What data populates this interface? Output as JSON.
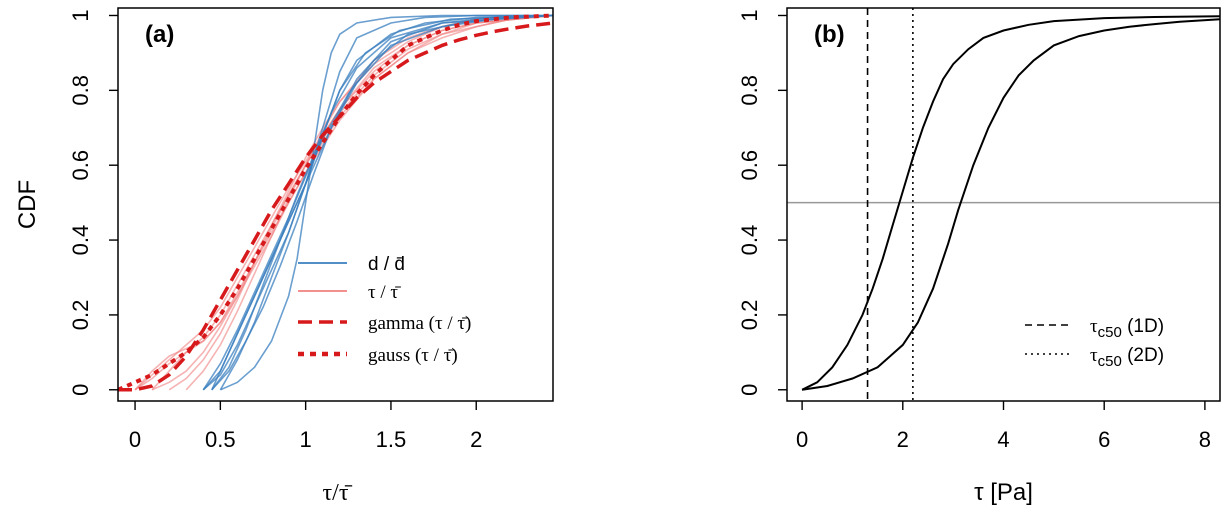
{
  "chart_data": [
    {
      "panel": "a",
      "type": "line",
      "panel_label": "(a)",
      "xlabel": "τ/τ̄",
      "ylabel": "CDF",
      "xlim": [
        -0.1,
        2.45
      ],
      "ylim": [
        -0.03,
        1.02
      ],
      "xticks": [
        0,
        0.5,
        1,
        1.5,
        2
      ],
      "xtick_labels": [
        "0",
        "0.5",
        "1",
        "1.5",
        "2"
      ],
      "yticks": [
        0,
        0.2,
        0.4,
        0.6,
        0.8,
        1
      ],
      "ytick_labels": [
        "0",
        "0.2",
        "0.4",
        "0.6",
        "0.8",
        "1"
      ],
      "grid": false,
      "legend_position": "center-right",
      "legend": [
        {
          "label": "d / d̄",
          "color": "#3a7fbf",
          "style": "solid-thin"
        },
        {
          "label": "τ / τ̄",
          "color": "#f08080",
          "style": "solid-thin"
        },
        {
          "label": "gamma (τ / τ̄)",
          "color": "#d7191c",
          "style": "dashed-thick"
        },
        {
          "label": "gauss (τ / τ̄)",
          "color": "#d7191c",
          "style": "dotted-thick"
        }
      ],
      "series_groups": [
        {
          "label": "d / d̄",
          "color": "#3a7fbf",
          "curves": [
            {
              "x": [
                0.4,
                0.5,
                0.6,
                0.7,
                0.8,
                0.9,
                1.0,
                1.1,
                1.2,
                1.3,
                1.5,
                1.7,
                2.0,
                2.45
              ],
              "y": [
                0.0,
                0.05,
                0.15,
                0.25,
                0.35,
                0.45,
                0.55,
                0.7,
                0.85,
                0.94,
                0.98,
                0.995,
                1.0,
                1.0
              ]
            },
            {
              "x": [
                0.4,
                0.5,
                0.6,
                0.7,
                0.8,
                0.9,
                1.0,
                1.1,
                1.2,
                1.3,
                1.5,
                1.7,
                2.0,
                2.45
              ],
              "y": [
                0.0,
                0.04,
                0.12,
                0.22,
                0.32,
                0.42,
                0.55,
                0.68,
                0.8,
                0.88,
                0.95,
                0.98,
                0.995,
                1.0
              ]
            },
            {
              "x": [
                0.45,
                0.55,
                0.65,
                0.75,
                0.85,
                0.95,
                1.05,
                1.15,
                1.3,
                1.5,
                1.8,
                2.1,
                2.45
              ],
              "y": [
                0.0,
                0.1,
                0.2,
                0.3,
                0.4,
                0.5,
                0.6,
                0.7,
                0.82,
                0.92,
                0.97,
                0.99,
                1.0
              ]
            },
            {
              "x": [
                0.45,
                0.55,
                0.65,
                0.75,
                0.85,
                0.95,
                1.05,
                1.15,
                1.3,
                1.5,
                1.8,
                2.1,
                2.45
              ],
              "y": [
                0.0,
                0.05,
                0.13,
                0.22,
                0.33,
                0.45,
                0.58,
                0.7,
                0.83,
                0.93,
                0.98,
                0.995,
                1.0
              ]
            },
            {
              "x": [
                0.4,
                0.5,
                0.6,
                0.7,
                0.8,
                0.9,
                1.0,
                1.1,
                1.25,
                1.4,
                1.6,
                1.9,
                2.2,
                2.45
              ],
              "y": [
                0.0,
                0.07,
                0.16,
                0.26,
                0.36,
                0.46,
                0.57,
                0.67,
                0.79,
                0.88,
                0.95,
                0.98,
                0.995,
                1.0
              ]
            },
            {
              "x": [
                0.5,
                0.6,
                0.7,
                0.8,
                0.9,
                0.95,
                1.0,
                1.05,
                1.1,
                1.15,
                1.2,
                1.3,
                1.5,
                1.8,
                2.45
              ],
              "y": [
                0.0,
                0.02,
                0.06,
                0.13,
                0.25,
                0.35,
                0.5,
                0.65,
                0.8,
                0.9,
                0.95,
                0.98,
                0.995,
                1.0,
                1.0
              ]
            },
            {
              "x": [
                0.45,
                0.55,
                0.65,
                0.75,
                0.85,
                0.95,
                1.05,
                1.15,
                1.3,
                1.5,
                1.8,
                2.45
              ],
              "y": [
                0.0,
                0.06,
                0.16,
                0.28,
                0.4,
                0.52,
                0.63,
                0.74,
                0.86,
                0.94,
                0.98,
                1.0
              ]
            },
            {
              "x": [
                0.5,
                0.6,
                0.7,
                0.8,
                0.9,
                1.0,
                1.1,
                1.2,
                1.35,
                1.55,
                1.85,
                2.45
              ],
              "y": [
                0.0,
                0.08,
                0.18,
                0.3,
                0.42,
                0.55,
                0.68,
                0.8,
                0.9,
                0.96,
                0.99,
                1.0
              ]
            }
          ]
        },
        {
          "label": "τ / τ̄",
          "color": "#f08080",
          "curves": [
            {
              "x": [
                0.0,
                0.1,
                0.2,
                0.3,
                0.4,
                0.5,
                0.6,
                0.7,
                0.8,
                0.9,
                1.0,
                1.1,
                1.2,
                1.4,
                1.6,
                1.8,
                2.0,
                2.2,
                2.45
              ],
              "y": [
                0.0,
                0.03,
                0.07,
                0.1,
                0.14,
                0.2,
                0.28,
                0.36,
                0.44,
                0.52,
                0.6,
                0.67,
                0.74,
                0.84,
                0.91,
                0.95,
                0.97,
                0.99,
                1.0
              ]
            },
            {
              "x": [
                0.0,
                0.1,
                0.2,
                0.3,
                0.4,
                0.5,
                0.6,
                0.7,
                0.8,
                0.9,
                1.0,
                1.1,
                1.2,
                1.4,
                1.6,
                1.8,
                2.0,
                2.2,
                2.45
              ],
              "y": [
                0.0,
                0.05,
                0.09,
                0.11,
                0.13,
                0.18,
                0.26,
                0.34,
                0.42,
                0.5,
                0.58,
                0.66,
                0.73,
                0.83,
                0.9,
                0.94,
                0.97,
                0.99,
                1.0
              ]
            },
            {
              "x": [
                0.1,
                0.2,
                0.3,
                0.4,
                0.5,
                0.6,
                0.7,
                0.8,
                0.9,
                1.0,
                1.1,
                1.2,
                1.4,
                1.6,
                1.8,
                2.0,
                2.45
              ],
              "y": [
                0.0,
                0.02,
                0.05,
                0.1,
                0.17,
                0.25,
                0.34,
                0.43,
                0.52,
                0.6,
                0.68,
                0.75,
                0.86,
                0.92,
                0.96,
                0.98,
                1.0
              ]
            },
            {
              "x": [
                0.2,
                0.3,
                0.4,
                0.5,
                0.6,
                0.7,
                0.8,
                0.9,
                1.0,
                1.1,
                1.2,
                1.4,
                1.6,
                1.8,
                2.0,
                2.45
              ],
              "y": [
                0.0,
                0.03,
                0.08,
                0.15,
                0.24,
                0.34,
                0.44,
                0.53,
                0.62,
                0.7,
                0.77,
                0.87,
                0.93,
                0.97,
                0.99,
                1.0
              ]
            },
            {
              "x": [
                0.0,
                0.1,
                0.2,
                0.3,
                0.4,
                0.5,
                0.6,
                0.7,
                0.8,
                0.9,
                1.0,
                1.1,
                1.2,
                1.4,
                1.6,
                1.8,
                2.0,
                2.45
              ],
              "y": [
                0.0,
                0.04,
                0.08,
                0.12,
                0.16,
                0.22,
                0.3,
                0.38,
                0.46,
                0.54,
                0.61,
                0.68,
                0.75,
                0.85,
                0.92,
                0.96,
                0.98,
                1.0
              ]
            },
            {
              "x": [
                0.3,
                0.4,
                0.5,
                0.6,
                0.7,
                0.8,
                0.9,
                1.0,
                1.1,
                1.2,
                1.4,
                1.6,
                1.8,
                2.0,
                2.45
              ],
              "y": [
                0.0,
                0.05,
                0.12,
                0.21,
                0.31,
                0.41,
                0.51,
                0.6,
                0.69,
                0.77,
                0.88,
                0.94,
                0.97,
                0.99,
                1.0
              ]
            },
            {
              "x": [
                0.1,
                0.2,
                0.3,
                0.4,
                0.5,
                0.6,
                0.7,
                0.8,
                0.9,
                1.0,
                1.1,
                1.2,
                1.4,
                1.6,
                1.8,
                2.0,
                2.45
              ],
              "y": [
                0.0,
                0.05,
                0.1,
                0.13,
                0.18,
                0.25,
                0.33,
                0.41,
                0.5,
                0.58,
                0.65,
                0.72,
                0.83,
                0.9,
                0.95,
                0.98,
                1.0
              ]
            }
          ]
        }
      ],
      "series": [
        {
          "name": "gamma (τ / τ̄)",
          "color": "#d7191c",
          "style": "dashed",
          "x": [
            -0.1,
            0.0,
            0.1,
            0.2,
            0.3,
            0.4,
            0.5,
            0.6,
            0.7,
            0.8,
            0.9,
            1.0,
            1.1,
            1.2,
            1.3,
            1.4,
            1.5,
            1.6,
            1.7,
            1.8,
            1.9,
            2.0,
            2.1,
            2.2,
            2.3,
            2.45
          ],
          "y": [
            0.0,
            0.0,
            0.01,
            0.04,
            0.09,
            0.16,
            0.24,
            0.32,
            0.4,
            0.48,
            0.55,
            0.62,
            0.68,
            0.73,
            0.78,
            0.82,
            0.85,
            0.88,
            0.9,
            0.92,
            0.935,
            0.947,
            0.957,
            0.965,
            0.972,
            0.98
          ]
        },
        {
          "name": "gauss (τ / τ̄)",
          "color": "#d7191c",
          "style": "dotted",
          "x": [
            -0.1,
            0.0,
            0.1,
            0.2,
            0.3,
            0.4,
            0.5,
            0.6,
            0.7,
            0.8,
            0.9,
            1.0,
            1.1,
            1.2,
            1.3,
            1.4,
            1.5,
            1.6,
            1.7,
            1.8,
            1.9,
            2.0,
            2.2,
            2.45
          ],
          "y": [
            0.0,
            0.02,
            0.04,
            0.07,
            0.1,
            0.14,
            0.2,
            0.27,
            0.35,
            0.43,
            0.51,
            0.59,
            0.66,
            0.73,
            0.79,
            0.84,
            0.88,
            0.92,
            0.94,
            0.96,
            0.975,
            0.985,
            0.995,
            1.0
          ]
        }
      ]
    },
    {
      "panel": "b",
      "type": "line",
      "panel_label": "(b)",
      "xlabel": "τ [Pa]",
      "ylabel": "",
      "xlim": [
        -0.3,
        8.3
      ],
      "ylim": [
        -0.03,
        1.02
      ],
      "xticks": [
        0,
        2,
        4,
        6,
        8
      ],
      "xtick_labels": [
        "0",
        "2",
        "4",
        "6",
        "8"
      ],
      "yticks": [
        0,
        0.2,
        0.4,
        0.6,
        0.8,
        1
      ],
      "ytick_labels": [
        "0",
        "0.2",
        "0.4",
        "0.6",
        "0.8",
        "1"
      ],
      "grid": false,
      "legend_position": "bottom-right",
      "legend": [
        {
          "label_main": "τ",
          "label_sub": "c50",
          "label_rest": " (1D)",
          "style": "dashed"
        },
        {
          "label_main": "τ",
          "label_sub": "c50",
          "label_rest": " (2D)",
          "style": "dotted"
        }
      ],
      "hline": {
        "y": 0.5,
        "color": "#999999"
      },
      "vlines": [
        {
          "x": 1.3,
          "style": "dashed"
        },
        {
          "x": 2.2,
          "style": "dotted"
        }
      ],
      "series": [
        {
          "name": "1D",
          "color": "#000000",
          "x": [
            0.0,
            0.3,
            0.6,
            0.9,
            1.2,
            1.4,
            1.6,
            1.8,
            2.0,
            2.2,
            2.4,
            2.6,
            2.8,
            3.0,
            3.3,
            3.6,
            4.0,
            4.5,
            5.0,
            6.0,
            7.0,
            8.3
          ],
          "y": [
            0.0,
            0.02,
            0.06,
            0.12,
            0.2,
            0.27,
            0.35,
            0.44,
            0.53,
            0.62,
            0.7,
            0.77,
            0.83,
            0.87,
            0.91,
            0.94,
            0.96,
            0.975,
            0.985,
            0.993,
            0.996,
            0.998
          ]
        },
        {
          "name": "2D",
          "color": "#000000",
          "x": [
            0.0,
            0.5,
            1.0,
            1.5,
            2.0,
            2.3,
            2.6,
            2.9,
            3.1,
            3.4,
            3.7,
            4.0,
            4.3,
            4.6,
            5.0,
            5.5,
            6.0,
            6.5,
            7.0,
            7.5,
            8.3
          ],
          "y": [
            0.0,
            0.01,
            0.03,
            0.06,
            0.12,
            0.18,
            0.27,
            0.39,
            0.48,
            0.6,
            0.7,
            0.78,
            0.84,
            0.88,
            0.92,
            0.945,
            0.96,
            0.97,
            0.977,
            0.983,
            0.99
          ]
        }
      ]
    }
  ]
}
